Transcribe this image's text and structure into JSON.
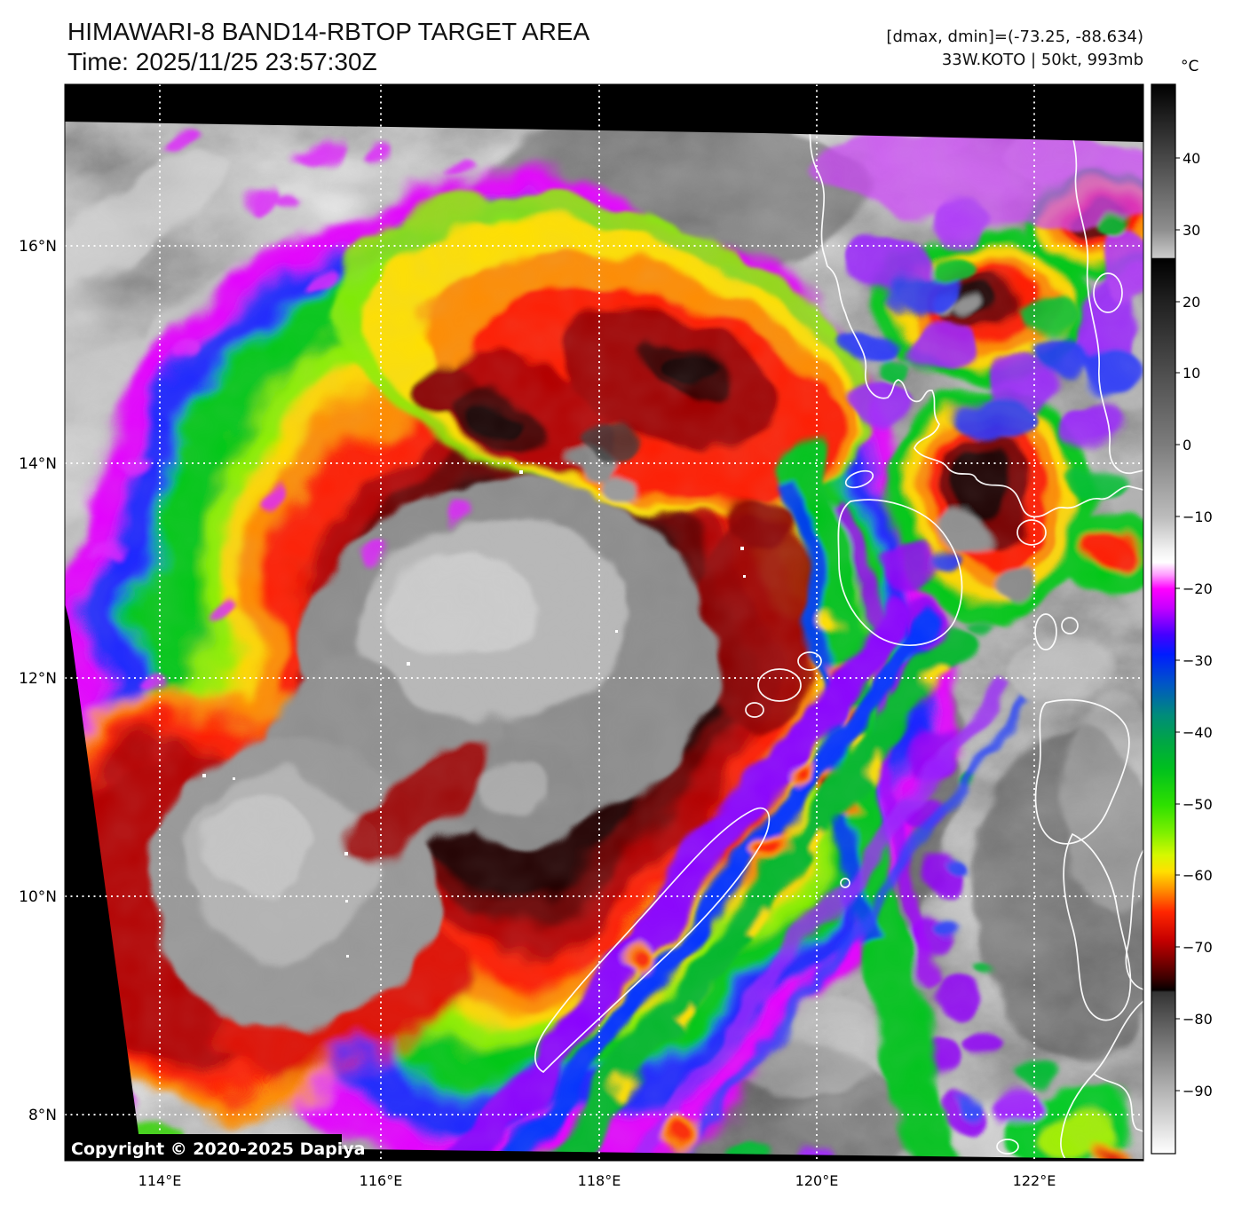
{
  "header": {
    "title": "HIMAWARI-8 BAND14-RBTOP TARGET AREA",
    "time_line": "Time: 2025/11/25 23:57:30Z",
    "dmax_dmin_line": "[dmax, dmin]=(-73.25, -88.634)",
    "storm_line": "33W.KOTO | 50kt, 993mb"
  },
  "storm": {
    "satellite": "HIMAWARI-8",
    "band": "BAND14-RBTOP",
    "id": "33W",
    "name": "KOTO",
    "intensity": "50kt",
    "pressure": "993mb",
    "dmax": -73.25,
    "dmin": -88.634,
    "time_utc": "2025/11/25 23:57:30Z"
  },
  "axes": {
    "lat_labels": [
      "16°N",
      "14°N",
      "12°N",
      "10°N",
      "8°N"
    ],
    "lon_labels": [
      "114°E",
      "116°E",
      "118°E",
      "120°E",
      "122°E"
    ]
  },
  "colorbar": {
    "unit": "°C",
    "tick_labels": [
      "40",
      "30",
      "20",
      "10",
      "0",
      "−10",
      "−20",
      "−30",
      "−40",
      "−50",
      "−60",
      "−70",
      "−80",
      "−90"
    ],
    "tick_values": [
      40,
      30,
      20,
      10,
      0,
      -10,
      -20,
      -30,
      -40,
      -50,
      -60,
      -70,
      -80,
      -90
    ],
    "gradient": [
      [
        0.0,
        "#000000"
      ],
      [
        0.136,
        "#8e8e8e"
      ],
      [
        0.156,
        "#bdbdbd"
      ],
      [
        0.162,
        "#cacaca"
      ],
      [
        0.163,
        "#000000"
      ],
      [
        0.2,
        "#1e1e1e"
      ],
      [
        0.27,
        "#4e4e4e"
      ],
      [
        0.337,
        "#7c7c7c"
      ],
      [
        0.405,
        "#bcbcbc"
      ],
      [
        0.435,
        "#f0f0f0"
      ],
      [
        0.447,
        "#ffffff"
      ],
      [
        0.459,
        "#ff9aff"
      ],
      [
        0.472,
        "#ff00ff"
      ],
      [
        0.49,
        "#c400ff"
      ],
      [
        0.515,
        "#4400ff"
      ],
      [
        0.533,
        "#001cff"
      ],
      [
        0.56,
        "#0054c8"
      ],
      [
        0.59,
        "#008c7a"
      ],
      [
        0.613,
        "#00a448"
      ],
      [
        0.64,
        "#00c01e"
      ],
      [
        0.674,
        "#2ee000"
      ],
      [
        0.7,
        "#7ef000"
      ],
      [
        0.721,
        "#d6f800"
      ],
      [
        0.736,
        "#ffe000"
      ],
      [
        0.754,
        "#ff8c00"
      ],
      [
        0.774,
        "#ff2600"
      ],
      [
        0.8,
        "#c60000"
      ],
      [
        0.816,
        "#8a0000"
      ],
      [
        0.836,
        "#3c0000"
      ],
      [
        0.847,
        "#060000"
      ],
      [
        0.849,
        "#333333"
      ],
      [
        0.875,
        "#595959"
      ],
      [
        0.94,
        "#b2b2b2"
      ],
      [
        1.0,
        "#ffffff"
      ]
    ]
  },
  "map": {
    "copyright": "Copyright © 2020-2025 Dapiya"
  },
  "colors": {
    "background": "#ffffff",
    "scan_void": "#000000",
    "gridline": "#ffffff",
    "coastline": "#ffffff"
  }
}
